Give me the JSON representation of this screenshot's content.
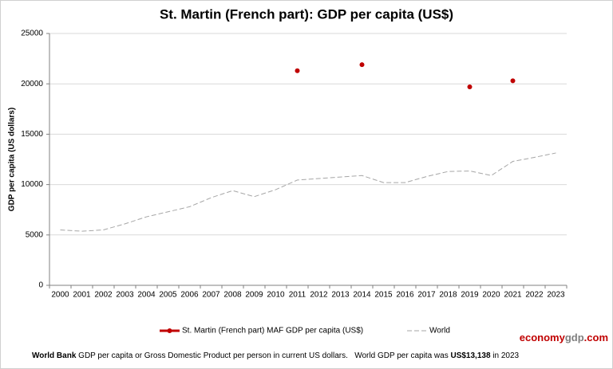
{
  "chart_data": {
    "type": "line",
    "title": "St. Martin (French part): GDP per capita (US$)",
    "y_label": "GDP per capita (US dollars)",
    "categories": [
      "2000",
      "2001",
      "2002",
      "2003",
      "2004",
      "2005",
      "2006",
      "2007",
      "2008",
      "2009",
      "2010",
      "2011",
      "2012",
      "2013",
      "2014",
      "2015",
      "2016",
      "2017",
      "2018",
      "2019",
      "2020",
      "2021",
      "2022",
      "2023"
    ],
    "series": [
      {
        "name": "St. Martin (French part) MAF GDP per capita (US$)",
        "color": "#c00000",
        "style": "markers",
        "values": [
          null,
          null,
          null,
          null,
          null,
          null,
          null,
          null,
          null,
          null,
          null,
          21300,
          null,
          null,
          21900,
          null,
          null,
          null,
          null,
          19700,
          null,
          20300,
          null,
          null
        ]
      },
      {
        "name": "World",
        "color": "#a6a6a6",
        "style": "dashed",
        "values": [
          5500,
          5370,
          5500,
          6100,
          6800,
          7300,
          7800,
          8700,
          9400,
          8800,
          9500,
          10450,
          10600,
          10750,
          10900,
          10200,
          10200,
          10800,
          11300,
          11350,
          10900,
          12300,
          12700,
          13138
        ]
      }
    ],
    "ylim": [
      0,
      25000
    ],
    "yticks": [
      0,
      5000,
      10000,
      15000,
      20000,
      25000
    ],
    "grid": true
  },
  "brand": [
    {
      "text": "economy",
      "color": "#c00000"
    },
    {
      "text": "gdp",
      "color": "#7f7f7f"
    },
    {
      "text": ".com",
      "color": "#c00000"
    }
  ],
  "footer": [
    {
      "text": "World Bank",
      "bold": true
    },
    {
      "text": " GDP per capita or Gross Domestic Product per person in current US dollars.   World GDP per capita was ",
      "bold": false
    },
    {
      "text": "US$13,138",
      "bold": true
    },
    {
      "text": " in 2023",
      "bold": false
    }
  ]
}
